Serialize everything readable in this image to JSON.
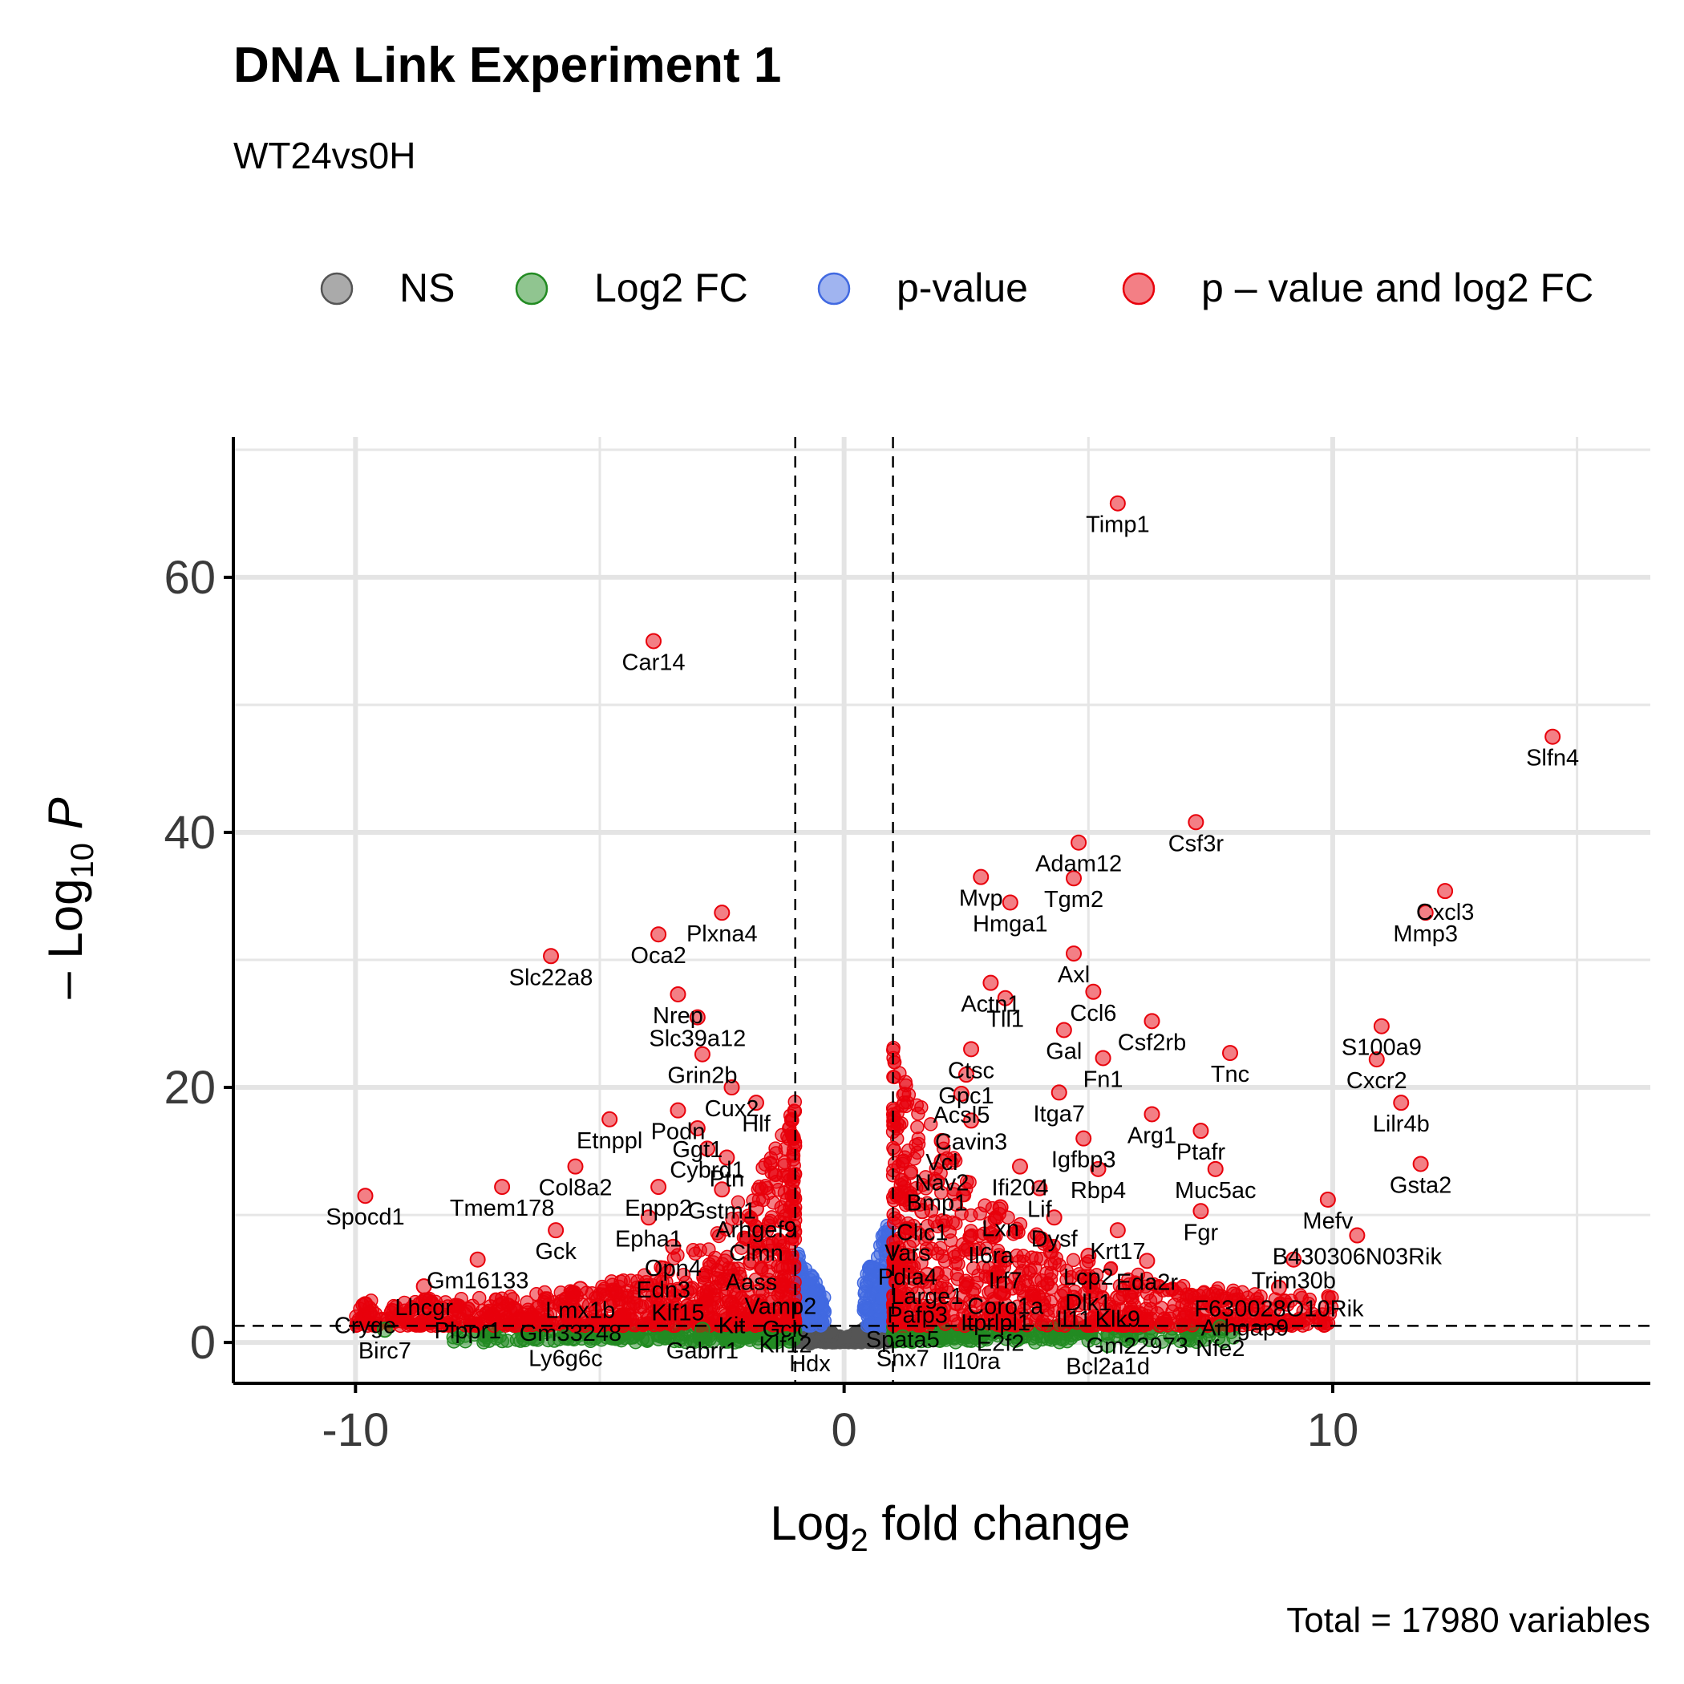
{
  "chart_data": {
    "type": "scatter",
    "title": "DNA Link Experiment 1",
    "subtitle": "WT24vs0H",
    "xlabel": "Log2 fold change",
    "ylabel": "-Log10 P",
    "caption": "Total = 17980 variables",
    "xlim": [
      -12.5,
      16.5
    ],
    "ylim": [
      -3.2,
      71
    ],
    "x_ticks": [
      -10,
      0,
      10
    ],
    "y_ticks": [
      0,
      20,
      40,
      60
    ],
    "grid": true,
    "legend_position": "top",
    "thresholds": {
      "log2fc": [
        -1,
        1
      ],
      "p_line": 1.3
    },
    "legend": [
      {
        "label": "NS",
        "color": "#555555"
      },
      {
        "label": "Log2 FC",
        "color": "#228b22"
      },
      {
        "label": "p-value",
        "color": "#4169e1"
      },
      {
        "label": "p – value and log2 FC",
        "color": "#e8000b"
      }
    ],
    "colors": {
      "NS": "#555555",
      "Log2FC": "#228b22",
      "pvalue": "#4169e1",
      "both": "#e8000b"
    },
    "labeled_genes": [
      {
        "name": "Timp1",
        "x": 5.6,
        "y": 65.8
      },
      {
        "name": "Car14",
        "x": -3.9,
        "y": 55.0
      },
      {
        "name": "Slfn4",
        "x": 14.5,
        "y": 47.5
      },
      {
        "name": "Adam12",
        "x": 4.8,
        "y": 39.2
      },
      {
        "name": "Csf3r",
        "x": 7.2,
        "y": 40.8
      },
      {
        "name": "Mvp",
        "x": 2.8,
        "y": 36.5
      },
      {
        "name": "Tgm2",
        "x": 4.7,
        "y": 36.4
      },
      {
        "name": "Hmga1",
        "x": 3.4,
        "y": 34.5
      },
      {
        "name": "Cxcl3",
        "x": 12.3,
        "y": 35.4
      },
      {
        "name": "Mmp3",
        "x": 11.9,
        "y": 33.7
      },
      {
        "name": "Plxna4",
        "x": -2.5,
        "y": 33.7
      },
      {
        "name": "Oca2",
        "x": -3.8,
        "y": 32.0
      },
      {
        "name": "Slc22a8",
        "x": -6.0,
        "y": 30.3
      },
      {
        "name": "Axl",
        "x": 4.7,
        "y": 30.5
      },
      {
        "name": "Actn1",
        "x": 3.0,
        "y": 28.2
      },
      {
        "name": "Tll1",
        "x": 3.3,
        "y": 27.0
      },
      {
        "name": "Nrep",
        "x": -3.4,
        "y": 27.3
      },
      {
        "name": "Ccl6",
        "x": 5.1,
        "y": 27.5
      },
      {
        "name": "Slc39a12",
        "x": -3.0,
        "y": 25.5
      },
      {
        "name": "S100a9",
        "x": 11.0,
        "y": 24.8
      },
      {
        "name": "Ctsc",
        "x": 2.6,
        "y": 23.0
      },
      {
        "name": "Csf2rb",
        "x": 6.3,
        "y": 25.2
      },
      {
        "name": "Gal",
        "x": 4.5,
        "y": 24.5
      },
      {
        "name": "Grin2b",
        "x": -2.9,
        "y": 22.6
      },
      {
        "name": "Tnc",
        "x": 7.9,
        "y": 22.7
      },
      {
        "name": "Fn1",
        "x": 5.3,
        "y": 22.3
      },
      {
        "name": "Cxcr2",
        "x": 10.9,
        "y": 22.2
      },
      {
        "name": "Gpc1",
        "x": 2.5,
        "y": 21.0
      },
      {
        "name": "Cux2",
        "x": -2.3,
        "y": 20.0
      },
      {
        "name": "Acsl5",
        "x": 2.4,
        "y": 19.5
      },
      {
        "name": "Itga7",
        "x": 4.4,
        "y": 19.6
      },
      {
        "name": "Lilr4b",
        "x": 11.4,
        "y": 18.8
      },
      {
        "name": "Arg1",
        "x": 6.3,
        "y": 17.9
      },
      {
        "name": "Podn",
        "x": -3.4,
        "y": 18.2
      },
      {
        "name": "Cavin3",
        "x": 2.6,
        "y": 17.4
      },
      {
        "name": "Hlf",
        "x": -1.8,
        "y": 18.8
      },
      {
        "name": "Etnppl",
        "x": -4.8,
        "y": 17.5
      },
      {
        "name": "Ggt1",
        "x": -3.0,
        "y": 16.8
      },
      {
        "name": "Igfbp3",
        "x": 4.9,
        "y": 16.0
      },
      {
        "name": "Ptafr",
        "x": 7.3,
        "y": 16.6
      },
      {
        "name": "Vcl",
        "x": 2.0,
        "y": 15.8
      },
      {
        "name": "Cybrd1",
        "x": -2.8,
        "y": 15.2
      },
      {
        "name": "Col8a2",
        "x": -5.5,
        "y": 13.8
      },
      {
        "name": "Ifi204",
        "x": 3.6,
        "y": 13.8
      },
      {
        "name": "Rbp4",
        "x": 5.2,
        "y": 13.6
      },
      {
        "name": "Muc5ac",
        "x": 7.6,
        "y": 13.6
      },
      {
        "name": "Ptn",
        "x": -2.4,
        "y": 14.5
      },
      {
        "name": "Nav2",
        "x": 2.0,
        "y": 14.2
      },
      {
        "name": "Gsta2",
        "x": 11.8,
        "y": 14.0
      },
      {
        "name": "Enpp2",
        "x": -3.8,
        "y": 12.2
      },
      {
        "name": "Bmp1",
        "x": 1.9,
        "y": 12.6
      },
      {
        "name": "Gstm1",
        "x": -2.5,
        "y": 12.0
      },
      {
        "name": "Lif",
        "x": 4.0,
        "y": 12.1
      },
      {
        "name": "Tmem178",
        "x": -7.0,
        "y": 12.2
      },
      {
        "name": "Spocd1",
        "x": -9.8,
        "y": 11.5
      },
      {
        "name": "Mefv",
        "x": 9.9,
        "y": 11.2
      },
      {
        "name": "Lxn",
        "x": 3.2,
        "y": 10.6
      },
      {
        "name": "Clic1",
        "x": 1.6,
        "y": 10.3
      },
      {
        "name": "Fgr",
        "x": 7.3,
        "y": 10.3
      },
      {
        "name": "Arhgef9",
        "x": -1.8,
        "y": 10.5
      },
      {
        "name": "Epha1",
        "x": -4.0,
        "y": 9.8
      },
      {
        "name": "Dysf",
        "x": 4.3,
        "y": 9.8
      },
      {
        "name": "Gck",
        "x": -5.9,
        "y": 8.8
      },
      {
        "name": "Clmn",
        "x": -1.8,
        "y": 8.7
      },
      {
        "name": "Il6ra",
        "x": 3.0,
        "y": 8.5
      },
      {
        "name": "Krt17",
        "x": 5.6,
        "y": 8.8
      },
      {
        "name": "B430306N03Rik",
        "x": 10.5,
        "y": 8.4
      },
      {
        "name": "Vars",
        "x": 1.3,
        "y": 8.7
      },
      {
        "name": "Opn4",
        "x": -3.5,
        "y": 7.5
      },
      {
        "name": "Pdia4",
        "x": 1.3,
        "y": 6.8
      },
      {
        "name": "Irf7",
        "x": 3.3,
        "y": 6.5
      },
      {
        "name": "Lcp2",
        "x": 5.0,
        "y": 6.8
      },
      {
        "name": "Eda2r",
        "x": 6.2,
        "y": 6.4
      },
      {
        "name": "Trim30b",
        "x": 9.2,
        "y": 6.5
      },
      {
        "name": "Gm16133",
        "x": -7.5,
        "y": 6.5
      },
      {
        "name": "Aass",
        "x": -1.9,
        "y": 6.4
      },
      {
        "name": "Edn3",
        "x": -3.7,
        "y": 5.8
      },
      {
        "name": "Large1",
        "x": 1.7,
        "y": 5.3
      },
      {
        "name": "Dlk1",
        "x": 5.0,
        "y": 4.8
      },
      {
        "name": "F630028O10Rik",
        "x": 8.9,
        "y": 4.3
      },
      {
        "name": "Vamp2",
        "x": -1.3,
        "y": 4.5
      },
      {
        "name": "Coro1a",
        "x": 3.3,
        "y": 4.5
      },
      {
        "name": "Lhcgr",
        "x": -8.6,
        "y": 4.4
      },
      {
        "name": "Lmx1b",
        "x": -5.4,
        "y": 4.2
      },
      {
        "name": "Klf15",
        "x": -3.4,
        "y": 4.0
      },
      {
        "name": "Pafp3",
        "x": 1.5,
        "y": 3.8
      },
      {
        "name": "Il11",
        "x": 4.7,
        "y": 3.5
      },
      {
        "name": "Klk9",
        "x": 5.6,
        "y": 3.5
      },
      {
        "name": "Itprlpl1",
        "x": 3.1,
        "y": 3.2
      },
      {
        "name": "Arhgap9",
        "x": 8.2,
        "y": 2.8
      },
      {
        "name": "Cryge",
        "x": -9.8,
        "y": 3.0
      },
      {
        "name": "Kit",
        "x": -2.3,
        "y": 3.0
      },
      {
        "name": "Gclc",
        "x": -1.2,
        "y": 2.7
      },
      {
        "name": "Plppr1",
        "x": -7.7,
        "y": 2.6
      },
      {
        "name": "Gm33248",
        "x": -5.6,
        "y": 2.4
      },
      {
        "name": "Spata5",
        "x": 1.2,
        "y": 1.9
      },
      {
        "name": "E2f2",
        "x": 3.2,
        "y": 1.6
      },
      {
        "name": "Gm22973",
        "x": 6.0,
        "y": 1.4
      },
      {
        "name": "Nfe2",
        "x": 7.7,
        "y": 1.2
      },
      {
        "name": "Klf12",
        "x": -1.2,
        "y": 1.5
      },
      {
        "name": "Gabrr1",
        "x": -2.9,
        "y": 1.0
      },
      {
        "name": "Birc7",
        "x": -9.4,
        "y": 1.0
      },
      {
        "name": "Ly6g6c",
        "x": -5.7,
        "y": 0.4
      },
      {
        "name": "Snx7",
        "x": 1.2,
        "y": 0.4
      },
      {
        "name": "Il10ra",
        "x": 2.6,
        "y": 0.2
      },
      {
        "name": "Hdx",
        "x": -0.7,
        "y": 0.0
      },
      {
        "name": "Bcl2a1d",
        "x": 5.4,
        "y": -0.2
      }
    ]
  }
}
